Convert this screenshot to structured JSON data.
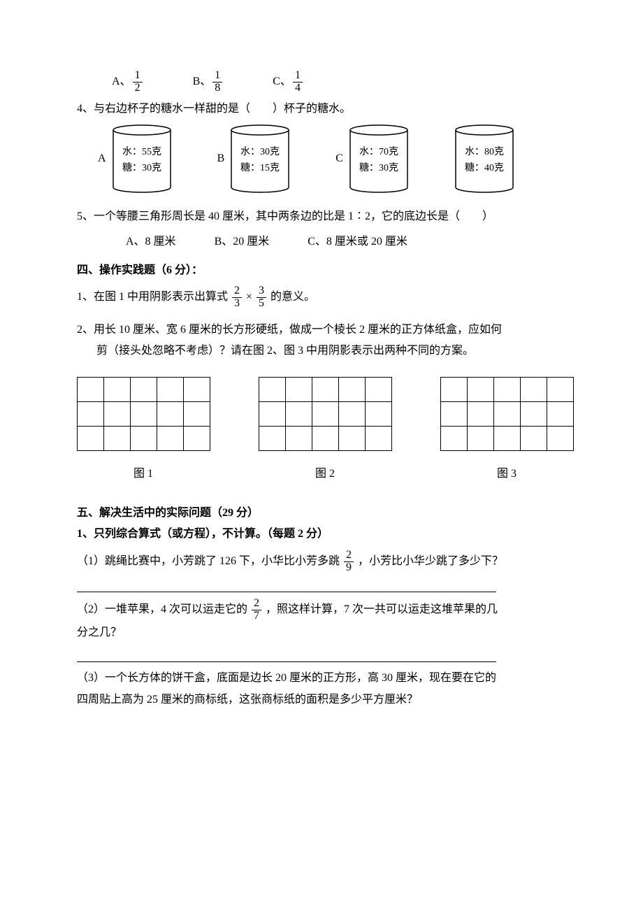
{
  "q3": {
    "options": [
      {
        "letter": "A、",
        "num": "1",
        "den": "2"
      },
      {
        "letter": "B、",
        "num": "1",
        "den": "8"
      },
      {
        "letter": "C、",
        "num": "1",
        "den": "4"
      }
    ]
  },
  "q4": {
    "text": "4、与右边杯子的糖水一样甜的是（　　）杯子的糖水。",
    "cylinders": [
      {
        "letter": "A",
        "water": "水：55克",
        "sugar": "糖：30克"
      },
      {
        "letter": "B",
        "water": "水：30克",
        "sugar": "糖：15克"
      },
      {
        "letter": "C",
        "water": "水：70克",
        "sugar": "糖：30克"
      },
      {
        "letter": "",
        "water": "水：80克",
        "sugar": "糖：40克"
      }
    ],
    "cyl_style": {
      "width": 86,
      "height": 100,
      "ellipse_h": 14,
      "stroke": "#000000",
      "stroke_width": 1.5,
      "fill": "#ffffff"
    }
  },
  "q5": {
    "text": "5、一个等腰三角形周长是 40 厘米，其中两条边的比是 1∶2，它的底边长是（　　）",
    "options": [
      "A、8 厘米",
      "B、20 厘米",
      "C、8 厘米或 20 厘米"
    ]
  },
  "section4": {
    "title": "四、操作实践题（6 分）：",
    "q1_pre": "1、在图 1 中用阴影表示出算式 ",
    "q1_frac1": {
      "num": "2",
      "den": "3"
    },
    "q1_mid": "×",
    "q1_frac2": {
      "num": "3",
      "den": "5"
    },
    "q1_post": "的意义。",
    "q2_line1": "2、用长 10 厘米、宽 6 厘米的长方形硬纸，做成一个棱长 2 厘米的正方体纸盒，应如何",
    "q2_line2": "剪（接头处忽略不考虑）？请在图 2、图 3 中用阴影表示出两种不同的方案。",
    "grid_labels": [
      "图 1",
      "图 2",
      "图 3"
    ],
    "grid": {
      "cols": 5,
      "rows": 3
    }
  },
  "section5": {
    "title": "五、解决生活中的实际问题（29 分）",
    "q1_head": "1、只列综合算式（或方程），不计算。（每题 2 分）",
    "sub1_pre": "（1）跳绳比赛中，小芳跳了 126 下，小华比小芳多跳 ",
    "sub1_frac": {
      "num": "2",
      "den": "9"
    },
    "sub1_post": "，小芳比小华少跳了多少下？",
    "sub2_pre": "（2）一堆苹果，4 次可以运走它的",
    "sub2_frac": {
      "num": "2",
      "den": "7"
    },
    "sub2_post": "，照这样计算，7 次一共可以运走这堆苹果的几",
    "sub2_line2": "分之几？",
    "sub3_line1": "（3）一个长方体的饼干盒，底面是边长 20 厘米的正方形，高 30 厘米，现在要在它的",
    "sub3_line2": "四周贴上高为 25 厘米的商标纸，这张商标纸的面积是多少平方厘米？"
  },
  "colors": {
    "text": "#000000",
    "bg": "#ffffff",
    "border": "#000000"
  }
}
